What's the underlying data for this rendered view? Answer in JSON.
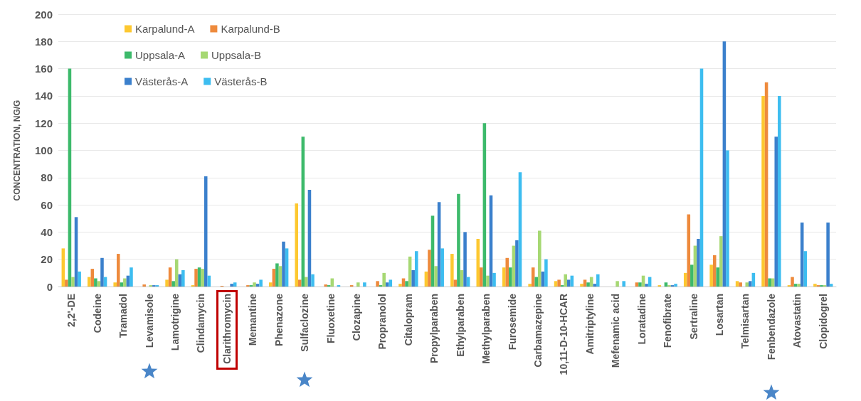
{
  "chart_data": {
    "type": "bar",
    "ylabel": "CONCENTRATION, NG/G",
    "categories": [
      "2,2'-DE",
      "Codeine",
      "Tramadol",
      "Levamisole",
      "Lamotrigine",
      "Clindamycin",
      "Clarithromycin",
      "Memantine",
      "Phenazone",
      "Sulfaclozine",
      "Fluoxetine",
      "Clozapine",
      "Propranolol",
      "Citalopram",
      "Propylparaben",
      "Ethylparaben",
      "Methylparaben",
      "Furosemide",
      "Carbamazepine",
      "10,11-D-10-HCAR",
      "Amitriptyline",
      "Mefenamic acid",
      "Loratadine",
      "Fenofibrate",
      "Sertraline",
      "Losartan",
      "Telmisartan",
      "Fenbendazole",
      "Atovastatin",
      "Clopidogrel"
    ],
    "series": [
      {
        "name": "Karpalund-A",
        "color": "#fdc830",
        "values": [
          28,
          7,
          3,
          0,
          5,
          1,
          0,
          0,
          3,
          61,
          0,
          0,
          0,
          2,
          11,
          24,
          35,
          14,
          2,
          4,
          2,
          0,
          0,
          1,
          10,
          16,
          4,
          140,
          1,
          2
        ]
      },
      {
        "name": "Karpalund-B",
        "color": "#ee8a3c",
        "values": [
          5,
          13,
          24,
          1.5,
          14,
          13,
          0.5,
          1,
          13,
          5,
          1.5,
          1,
          4,
          6,
          27,
          5,
          14,
          21,
          14,
          5,
          5,
          0,
          3,
          0,
          53,
          23,
          3,
          150,
          7,
          1
        ]
      },
      {
        "name": "Uppsala-A",
        "color": "#3dba6b",
        "values": [
          160,
          6,
          3,
          0,
          4,
          14,
          0,
          1,
          17,
          110,
          1,
          0,
          1,
          4,
          52,
          68,
          120,
          14,
          7,
          1,
          3,
          0,
          3,
          3,
          16,
          14,
          0,
          6,
          2,
          1
        ]
      },
      {
        "name": "Uppsala-B",
        "color": "#a6d873",
        "values": [
          7,
          4,
          6,
          1,
          20,
          13,
          0,
          3,
          15,
          7,
          6,
          3,
          10,
          22,
          15,
          12,
          8,
          30,
          41,
          9,
          7,
          4,
          8,
          1,
          30,
          37,
          3,
          6,
          2,
          1
        ]
      },
      {
        "name": "Västerås-A",
        "color": "#3b80cc",
        "values": [
          51,
          21,
          8,
          1,
          9,
          81,
          2,
          2,
          33,
          71,
          0,
          0,
          3,
          12,
          62,
          40,
          67,
          34,
          11,
          5,
          2,
          0,
          2,
          1,
          35,
          180,
          4,
          110,
          47,
          47
        ]
      },
      {
        "name": "Västerås-B",
        "color": "#3dbdf0",
        "values": [
          11,
          7,
          14,
          1,
          12,
          8,
          3,
          5,
          28,
          9,
          1,
          3,
          5,
          26,
          28,
          7,
          10,
          84,
          20,
          8,
          9,
          4,
          7,
          2,
          160,
          100,
          10,
          140,
          26,
          2
        ]
      }
    ],
    "ylim": [
      0,
      200
    ],
    "yticks": [
      0,
      20,
      40,
      60,
      80,
      100,
      120,
      140,
      160,
      180,
      200
    ],
    "grid": "y",
    "legend": "top left"
  }
}
